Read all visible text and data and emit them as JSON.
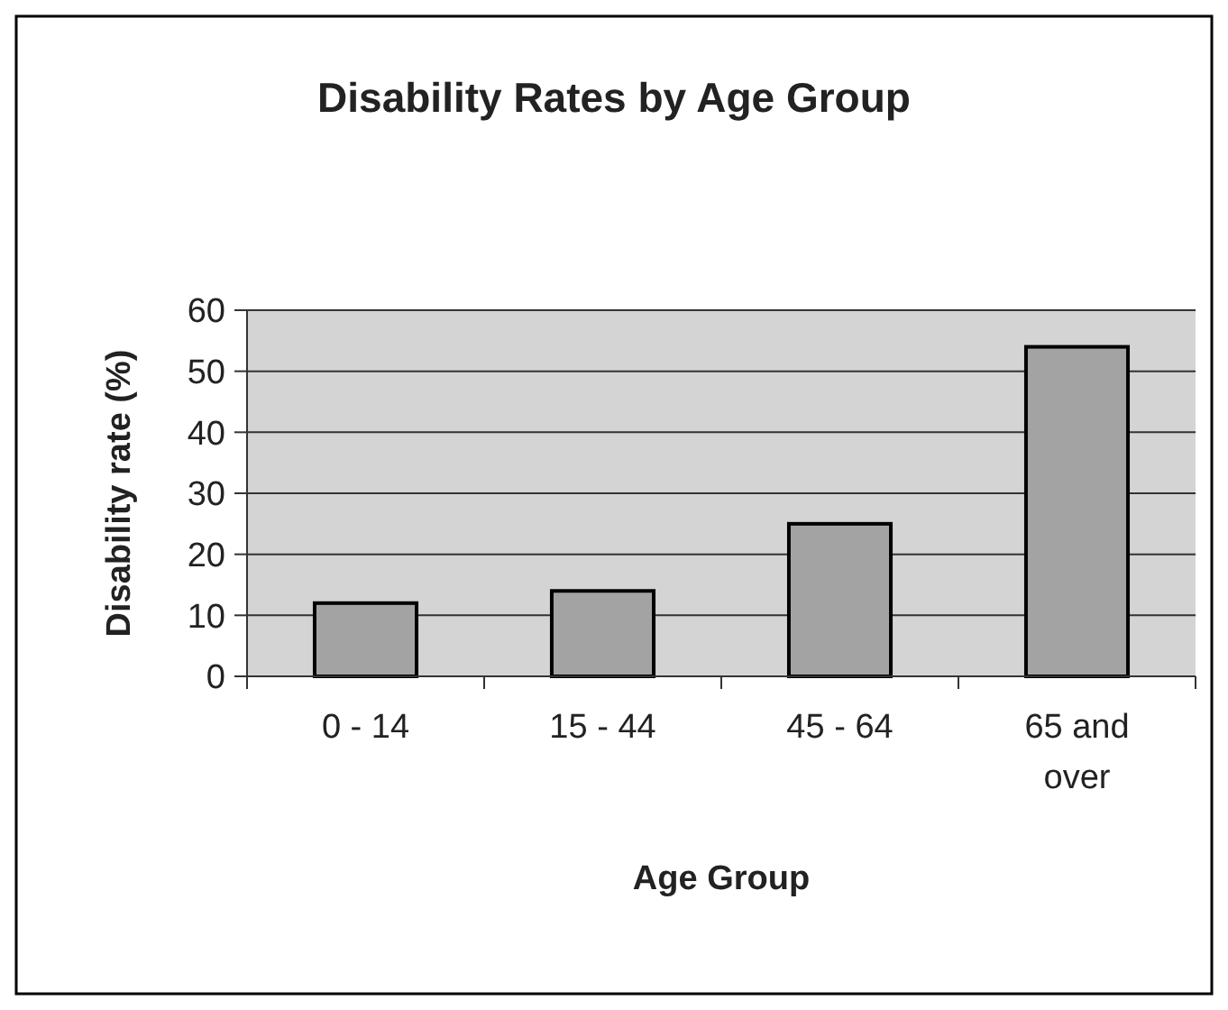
{
  "chart_data": {
    "type": "bar",
    "title": "Disability Rates by Age Group",
    "xlabel": "Age Group",
    "ylabel": "Disability rate (%)",
    "categories": [
      "0 - 14",
      "15 - 44",
      "45 - 64",
      "65 and over"
    ],
    "values": [
      12,
      14,
      25,
      54
    ],
    "color": "#a3a3a3",
    "ylim": [
      0,
      60
    ],
    "yticks": [
      0,
      10,
      20,
      30,
      40,
      50,
      60
    ],
    "grid": "y"
  }
}
